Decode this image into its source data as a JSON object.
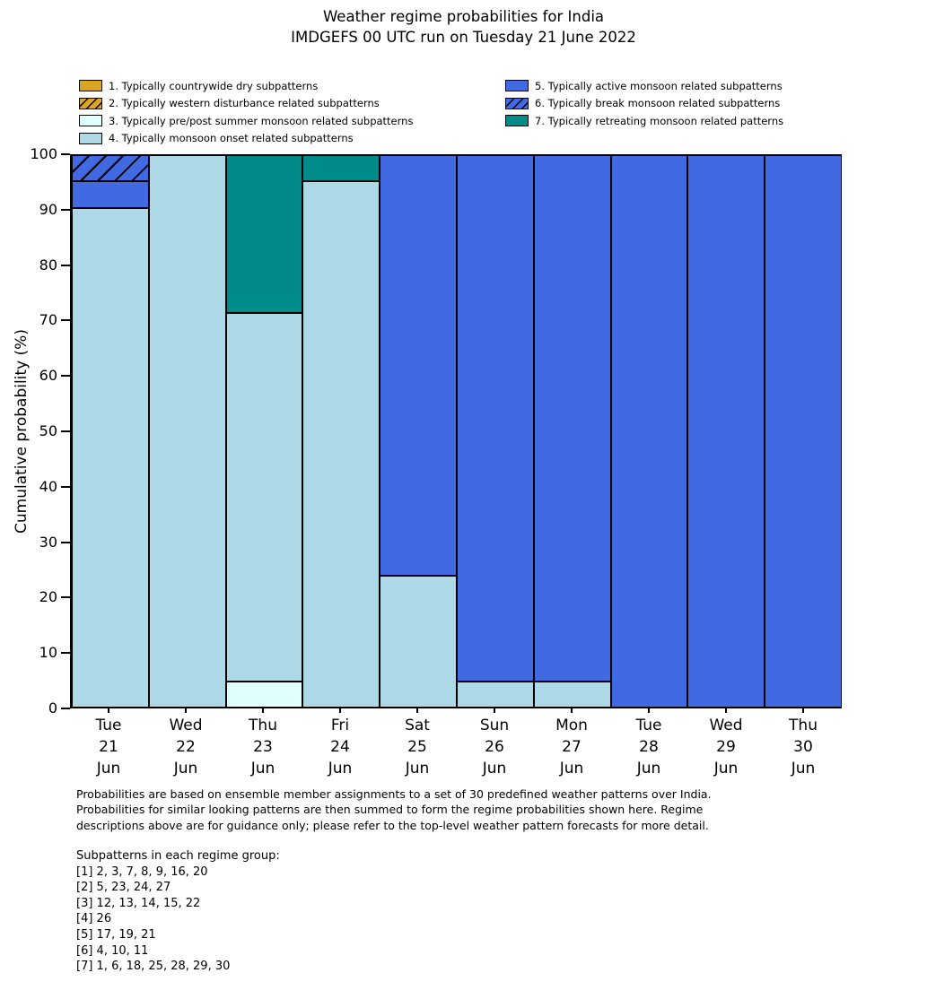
{
  "title": {
    "line1": "Weather regime probabilities for India",
    "line2": "IMDGEFS 00 UTC run on Tuesday 21 June 2022"
  },
  "legend": {
    "columns": [
      {
        "items": [
          {
            "label": "1. Typically countrywide dry subpatterns",
            "color": "#DAA520",
            "hatch": false
          },
          {
            "label": "2. Typically western disturbance related subpatterns",
            "color": "#DAA520",
            "hatch": true
          },
          {
            "label": "3. Typically pre/post summer monsoon related subpatterns",
            "color": "#E0FFFF",
            "hatch": false
          },
          {
            "label": "4. Typically monsoon onset related subpatterns",
            "color": "#ADD8E6",
            "hatch": false
          }
        ]
      },
      {
        "items": [
          {
            "label": "5. Typically active monsoon related subpatterns",
            "color": "#4169E1",
            "hatch": false
          },
          {
            "label": "6. Typically break monsoon related subpatterns",
            "color": "#4169E1",
            "hatch": true
          },
          {
            "label": "7. Typically retreating monsoon related patterns",
            "color": "#008B8B",
            "hatch": false
          }
        ]
      }
    ]
  },
  "chart_data": {
    "type": "bar",
    "stacked": true,
    "title": "Weather regime probabilities for India",
    "subtitle": "IMDGEFS 00 UTC run on Tuesday 21 June 2022",
    "xlabel": "",
    "ylabel": "Cumulative probability (%)",
    "ylim": [
      0,
      100
    ],
    "yticks": [
      0,
      10,
      20,
      30,
      40,
      50,
      60,
      70,
      80,
      90,
      100
    ],
    "grid": false,
    "legend_position": "top, two columns above chart",
    "bar_edge_color": "#000000",
    "categories": [
      "Tue 21 Jun",
      "Wed 22 Jun",
      "Thu 23 Jun",
      "Fri 24 Jun",
      "Sat 25 Jun",
      "Sun 26 Jun",
      "Mon 27 Jun",
      "Tue 28 Jun",
      "Wed 29 Jun",
      "Thu 30 Jun"
    ],
    "x_tick_lines": [
      [
        "Tue",
        "21",
        "Jun"
      ],
      [
        "Wed",
        "22",
        "Jun"
      ],
      [
        "Thu",
        "23",
        "Jun"
      ],
      [
        "Fri",
        "24",
        "Jun"
      ],
      [
        "Sat",
        "25",
        "Jun"
      ],
      [
        "Sun",
        "26",
        "Jun"
      ],
      [
        "Mon",
        "27",
        "Jun"
      ],
      [
        "Tue",
        "28",
        "Jun"
      ],
      [
        "Wed",
        "29",
        "Jun"
      ],
      [
        "Thu",
        "30",
        "Jun"
      ]
    ],
    "series": [
      {
        "name": "1. Typically countrywide dry subpatterns",
        "color": "#DAA520",
        "hatch": false,
        "values": [
          0,
          0,
          0,
          0,
          0,
          0,
          0,
          0,
          0,
          0
        ]
      },
      {
        "name": "2. Typically western disturbance related subpatterns",
        "color": "#DAA520",
        "hatch": true,
        "values": [
          0,
          0,
          0,
          0,
          0,
          0,
          0,
          0,
          0,
          0
        ]
      },
      {
        "name": "3. Typically pre/post summer monsoon related subpatterns",
        "color": "#E0FFFF",
        "hatch": false,
        "values": [
          0,
          0,
          4.76,
          0,
          0,
          0,
          0,
          0,
          0,
          0
        ]
      },
      {
        "name": "4. Typically monsoon onset related subpatterns",
        "color": "#ADD8E6",
        "hatch": false,
        "values": [
          90.48,
          100,
          66.67,
          95.24,
          23.81,
          4.76,
          4.76,
          0,
          0,
          0
        ]
      },
      {
        "name": "5. Typically active monsoon related subpatterns",
        "color": "#4169E1",
        "hatch": false,
        "values": [
          4.76,
          0,
          0,
          0,
          76.19,
          95.24,
          95.24,
          100,
          100,
          100
        ]
      },
      {
        "name": "6. Typically break monsoon related subpatterns",
        "color": "#4169E1",
        "hatch": true,
        "values": [
          4.76,
          0,
          0,
          0,
          0,
          0,
          0,
          0,
          0,
          0
        ]
      },
      {
        "name": "7. Typically retreating monsoon related patterns",
        "color": "#008B8B",
        "hatch": false,
        "values": [
          0,
          0,
          28.57,
          4.76,
          0,
          0,
          0,
          0,
          0,
          0
        ]
      }
    ]
  },
  "footnote": {
    "lines": [
      "Probabilities are based on ensemble member assignments to a set of 30 predefined weather patterns over India.",
      "Probabilities for similar looking patterns are then summed to form the regime probabilities shown here. Regime",
      "descriptions above are for guidance only; please refer to the top-level weather pattern forecasts for more detail."
    ]
  },
  "subpatterns": {
    "heading": "Subpatterns in each regime group:",
    "groups": [
      "[1] 2, 3, 7, 8, 9, 16, 20",
      "[2] 5, 23, 24, 27",
      "[3] 12, 13, 14, 15, 22",
      "[4] 26",
      "[5] 17, 19, 21",
      "[6] 4, 10, 11",
      "[7] 1, 6, 18, 25, 28, 29, 30"
    ]
  }
}
